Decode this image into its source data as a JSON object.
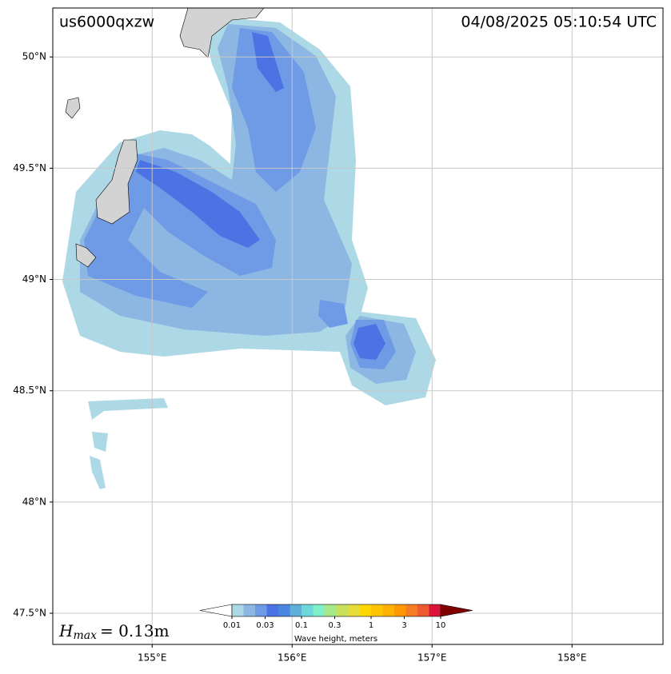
{
  "map": {
    "title": "us6000qxzw",
    "timestamp": "04/08/2025 05:10:54 UTC",
    "xlim": [
      154.29,
      158.65
    ],
    "ylim": [
      47.36,
      50.22
    ],
    "xticks": [
      {
        "value": 155,
        "label": "155°E"
      },
      {
        "value": 156,
        "label": "156°E"
      },
      {
        "value": 157,
        "label": "157°E"
      },
      {
        "value": 158,
        "label": "158°E"
      }
    ],
    "yticks": [
      {
        "value": 47.5,
        "label": "47.5°N"
      },
      {
        "value": 48,
        "label": "48°N"
      },
      {
        "value": 48.5,
        "label": "48.5°N"
      },
      {
        "value": 49,
        "label": "49°N"
      },
      {
        "value": 49.5,
        "label": "49.5°N"
      },
      {
        "value": 50,
        "label": "50°N"
      }
    ],
    "hmax": {
      "symbol": "H",
      "subscript": "max",
      "text": "= 0.13m"
    },
    "colorbar": {
      "title": "Wave height, meters",
      "log": true,
      "lim": [
        0.01,
        10
      ],
      "ticks": [
        0.01,
        0.03,
        0.1,
        0.3,
        1,
        3,
        10
      ],
      "colors": [
        "#add8e6",
        "#8db7e3",
        "#6f9be6",
        "#4b73e4",
        "#4a86e0",
        "#5fb0d8",
        "#6ed8d8",
        "#7ff0c8",
        "#a7e88a",
        "#c8e05a",
        "#e8dc3a",
        "#ffd700",
        "#ffc400",
        "#ffb000",
        "#ff9800",
        "#f57c20",
        "#ee5a30",
        "#dc143c"
      ],
      "over_color": "#800000",
      "under_color": "#ffffff"
    }
  }
}
